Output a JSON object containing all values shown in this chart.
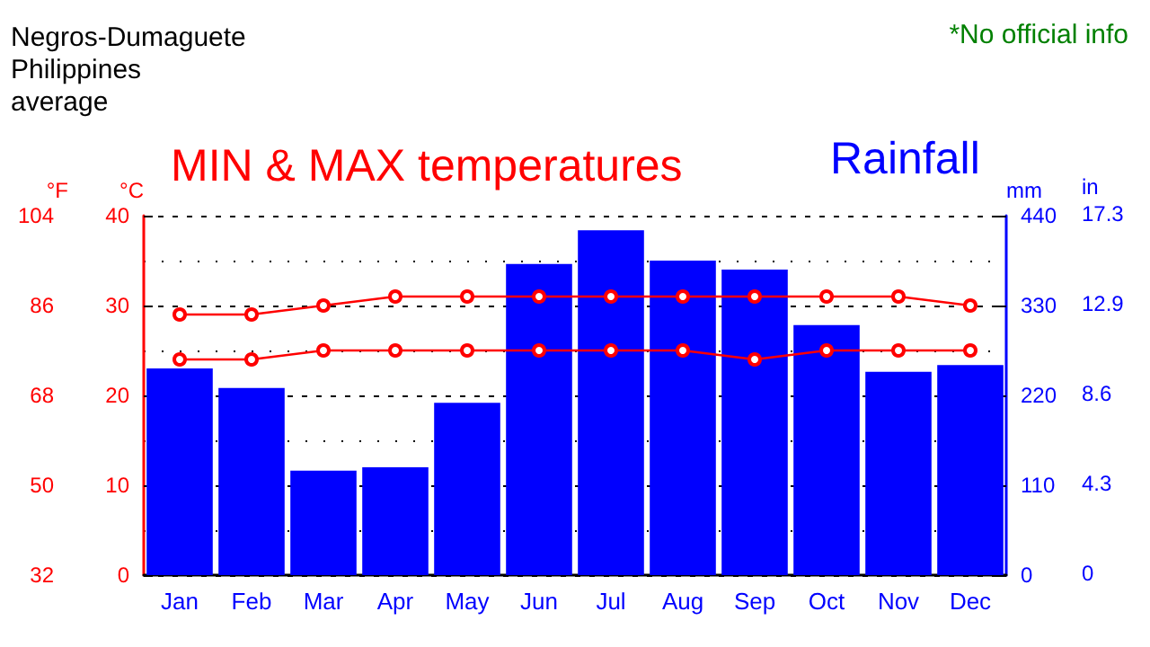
{
  "chart_data": {
    "type": "bar",
    "title": "MIN & MAX temperatures",
    "subtitle": "Negros-Dumaguete\nPhilippines\naverage",
    "annotations": [
      "Rainfall",
      "*No official info",
      "in",
      "0",
      "4.3",
      "8.6",
      "12.9",
      "17.3"
    ],
    "ylabel": "°C",
    "y2label": "mm",
    "y3label": "°F",
    "categories": [
      "Jan",
      "Feb",
      "Mar",
      "Apr",
      "May",
      "Jun",
      "Jul",
      "Aug",
      "Sep",
      "Oct",
      "Nov",
      "Dec"
    ],
    "series": [
      {
        "axis": "y2",
        "color": "#0000ff",
        "values": [
          253,
          229,
          128,
          132,
          211,
          381,
          422,
          385,
          374,
          306,
          249,
          257
        ]
      },
      {
        "type": "line",
        "axis": "y",
        "color": "#ff0000",
        "marker": "circle",
        "values": [
          29,
          29,
          30,
          31,
          31,
          31,
          31,
          31,
          31,
          31,
          31,
          30
        ]
      },
      {
        "type": "line",
        "axis": "y",
        "color": "#ff0000",
        "marker": "circle",
        "values": [
          24,
          24,
          25,
          25,
          25,
          25,
          25,
          25,
          24,
          25,
          25,
          25
        ]
      }
    ],
    "ylim": [
      0,
      40
    ],
    "yticks": [
      0,
      10,
      20,
      30,
      40
    ],
    "y2lim": [
      0,
      440
    ],
    "y2ticks": [
      0,
      110,
      220,
      330,
      440
    ],
    "y3lim": [
      32,
      104
    ],
    "y3ticks": [
      32,
      50,
      68,
      86,
      104
    ],
    "grid": "y"
  }
}
